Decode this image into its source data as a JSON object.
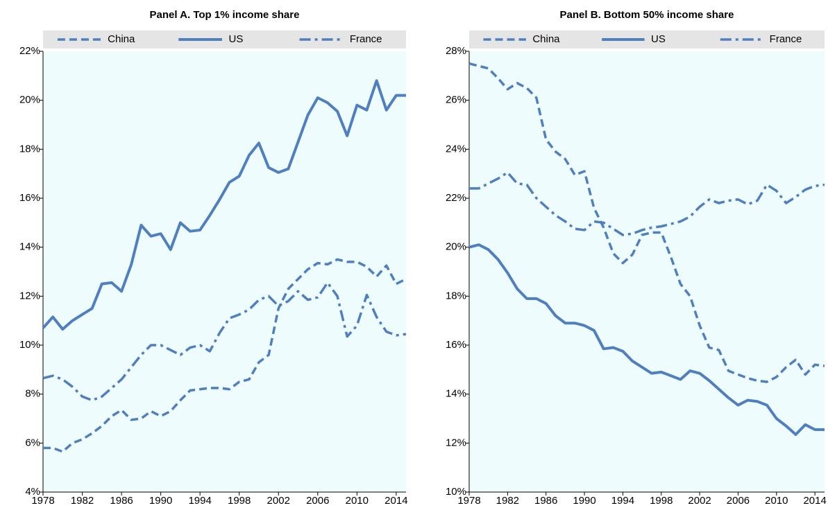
{
  "chart_data": [
    {
      "type": "line",
      "title": "Panel A. Top 1% income share",
      "x": [
        1978,
        1979,
        1980,
        1981,
        1982,
        1983,
        1984,
        1985,
        1986,
        1987,
        1988,
        1989,
        1990,
        1991,
        1992,
        1993,
        1994,
        1995,
        1996,
        1997,
        1998,
        1999,
        2000,
        2001,
        2002,
        2003,
        2004,
        2005,
        2006,
        2007,
        2008,
        2009,
        2010,
        2011,
        2012,
        2013,
        2014,
        2015
      ],
      "xlim": [
        1978,
        2015
      ],
      "xticks": [
        1978,
        1982,
        1986,
        1990,
        1994,
        1998,
        2002,
        2006,
        2010,
        2014
      ],
      "ylim": [
        4,
        22
      ],
      "yticks": [
        {
          "value": 4,
          "label": "4%"
        },
        {
          "value": 6,
          "label": "6%"
        },
        {
          "value": 8,
          "label": "8%"
        },
        {
          "value": 10,
          "label": "10%"
        },
        {
          "value": 12,
          "label": "12%"
        },
        {
          "value": 14,
          "label": "14%"
        },
        {
          "value": 16,
          "label": "16%"
        },
        {
          "value": 18,
          "label": "18%"
        },
        {
          "value": 20,
          "label": "20%"
        },
        {
          "value": 22,
          "label": "22%"
        }
      ],
      "legend": "top",
      "plot_background": "#effcfd",
      "series": [
        {
          "name": "China",
          "color": "#4f7fbf",
          "dash": "dashed",
          "values": [
            5.8,
            5.8,
            5.65,
            6.0,
            6.15,
            6.4,
            6.7,
            7.1,
            7.35,
            6.95,
            7.0,
            7.3,
            7.1,
            7.3,
            7.75,
            8.15,
            8.2,
            8.25,
            8.25,
            8.2,
            8.5,
            8.6,
            9.3,
            9.6,
            11.5,
            12.3,
            12.7,
            13.1,
            13.35,
            13.3,
            13.5,
            13.4,
            13.4,
            13.2,
            12.8,
            13.25,
            12.5,
            12.7
          ]
        },
        {
          "name": "US",
          "color": "#4f7fbf",
          "dash": "solid",
          "values": [
            10.7,
            11.15,
            10.65,
            11.0,
            11.25,
            11.5,
            12.5,
            12.55,
            12.2,
            13.3,
            14.9,
            14.45,
            14.55,
            13.9,
            15.0,
            14.65,
            14.7,
            15.3,
            15.95,
            16.65,
            16.9,
            17.75,
            18.25,
            17.25,
            17.05,
            17.2,
            18.3,
            19.4,
            20.1,
            19.9,
            19.55,
            18.55,
            19.8,
            19.6,
            20.8,
            19.6,
            20.2,
            20.2
          ]
        },
        {
          "name": "France",
          "color": "#4f7fbf",
          "dash": "dashdot",
          "values": [
            8.65,
            8.75,
            8.6,
            8.3,
            7.9,
            7.75,
            7.9,
            8.25,
            8.6,
            9.1,
            9.6,
            10.0,
            10.0,
            9.8,
            9.6,
            9.9,
            10.0,
            9.75,
            10.5,
            11.1,
            11.25,
            11.45,
            11.85,
            12.0,
            11.6,
            11.8,
            12.2,
            11.85,
            11.95,
            12.55,
            12.0,
            10.35,
            10.8,
            12.05,
            11.15,
            10.55,
            10.4,
            10.45
          ]
        }
      ]
    },
    {
      "type": "line",
      "title": "Panel B. Bottom 50% income share",
      "x": [
        1978,
        1979,
        1980,
        1981,
        1982,
        1983,
        1984,
        1985,
        1986,
        1987,
        1988,
        1989,
        1990,
        1991,
        1992,
        1993,
        1994,
        1995,
        1996,
        1997,
        1998,
        1999,
        2000,
        2001,
        2002,
        2003,
        2004,
        2005,
        2006,
        2007,
        2008,
        2009,
        2010,
        2011,
        2012,
        2013,
        2014,
        2015
      ],
      "xlim": [
        1978,
        2015
      ],
      "xticks": [
        1978,
        1982,
        1986,
        1990,
        1994,
        1998,
        2002,
        2006,
        2010,
        2014
      ],
      "ylim": [
        10,
        28
      ],
      "yticks": [
        {
          "value": 10,
          "label": "10%"
        },
        {
          "value": 12,
          "label": "12%"
        },
        {
          "value": 14,
          "label": "14%"
        },
        {
          "value": 16,
          "label": "16%"
        },
        {
          "value": 18,
          "label": "18%"
        },
        {
          "value": 20,
          "label": "20%"
        },
        {
          "value": 22,
          "label": "22%"
        },
        {
          "value": 24,
          "label": "24%"
        },
        {
          "value": 26,
          "label": "26%"
        },
        {
          "value": 28,
          "label": "28%"
        }
      ],
      "legend": "top",
      "plot_background": "#effcfd",
      "series": [
        {
          "name": "China",
          "color": "#4f7fbf",
          "dash": "dashed",
          "values": [
            27.5,
            27.4,
            27.3,
            26.9,
            26.45,
            26.7,
            26.5,
            26.1,
            24.4,
            23.9,
            23.6,
            22.95,
            23.1,
            21.6,
            20.8,
            19.75,
            19.35,
            19.7,
            20.5,
            20.6,
            20.6,
            19.6,
            18.5,
            18.0,
            16.8,
            15.9,
            15.8,
            14.95,
            14.8,
            14.65,
            14.55,
            14.5,
            14.7,
            15.1,
            15.4,
            14.8,
            15.2,
            15.15
          ]
        },
        {
          "name": "US",
          "color": "#4f7fbf",
          "dash": "solid",
          "values": [
            20.0,
            20.1,
            19.9,
            19.5,
            18.95,
            18.3,
            17.9,
            17.9,
            17.7,
            17.2,
            16.9,
            16.9,
            16.8,
            16.6,
            15.85,
            15.9,
            15.75,
            15.35,
            15.1,
            14.85,
            14.9,
            14.75,
            14.6,
            14.95,
            14.85,
            14.55,
            14.2,
            13.85,
            13.55,
            13.75,
            13.7,
            13.55,
            13.0,
            12.7,
            12.35,
            12.75,
            12.55,
            12.55
          ]
        },
        {
          "name": "France",
          "color": "#4f7fbf",
          "dash": "dashdot",
          "values": [
            22.4,
            22.4,
            22.6,
            22.8,
            23.05,
            22.6,
            22.55,
            22.0,
            21.65,
            21.3,
            21.05,
            20.75,
            20.7,
            21.05,
            21.0,
            20.75,
            20.5,
            20.55,
            20.7,
            20.8,
            20.85,
            20.95,
            21.05,
            21.25,
            21.65,
            21.95,
            21.8,
            21.9,
            21.95,
            21.75,
            21.9,
            22.55,
            22.3,
            21.8,
            22.05,
            22.35,
            22.5,
            22.55
          ]
        }
      ]
    }
  ]
}
